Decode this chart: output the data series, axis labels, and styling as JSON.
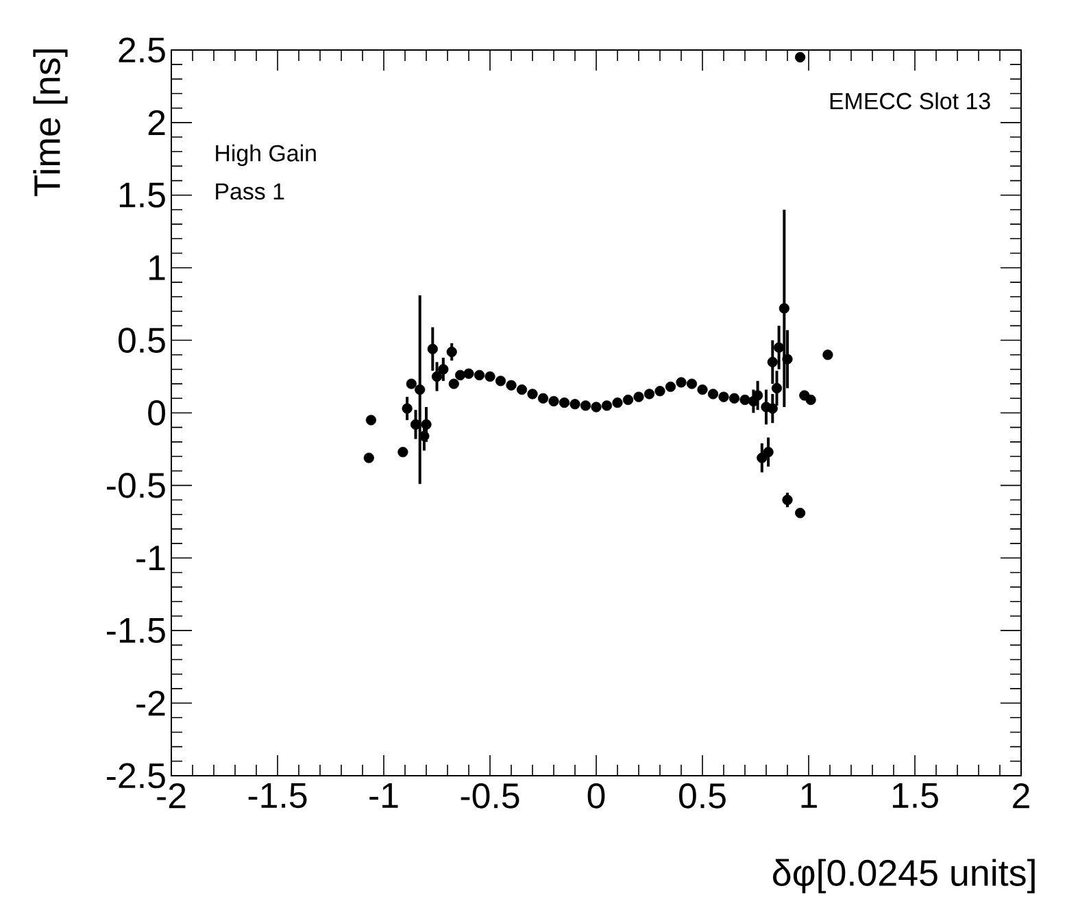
{
  "chart_data": {
    "type": "scatter",
    "xlabel": "δφ[0.0245 units]",
    "ylabel": "Time [ns]",
    "annotations": [
      "EMECC Slot 13",
      "High Gain",
      "Pass 1"
    ],
    "xlim": [
      -2,
      2
    ],
    "ylim": [
      -2.5,
      2.5
    ],
    "xticks": [
      -2,
      -1.5,
      -1,
      -0.5,
      0,
      0.5,
      1,
      1.5,
      2
    ],
    "yticks": [
      -2.5,
      -2,
      -1.5,
      -1,
      -0.5,
      0,
      0.5,
      1,
      1.5,
      2,
      2.5
    ],
    "marker": "circle",
    "color": "#000000",
    "x": [
      -1.07,
      -1.06,
      -0.91,
      -0.89,
      -0.87,
      -0.85,
      -0.83,
      -0.81,
      -0.8,
      -0.77,
      -0.75,
      -0.72,
      -0.68,
      -0.67,
      -0.64,
      -0.6,
      -0.55,
      -0.5,
      -0.45,
      -0.4,
      -0.35,
      -0.3,
      -0.25,
      -0.2,
      -0.15,
      -0.1,
      -0.05,
      0,
      0.05,
      0.1,
      0.15,
      0.2,
      0.25,
      0.3,
      0.35,
      0.4,
      0.45,
      0.5,
      0.55,
      0.6,
      0.65,
      0.7,
      0.74,
      0.76,
      0.78,
      0.8,
      0.81,
      0.83,
      0.83,
      0.85,
      0.86,
      0.885,
      0.9,
      0.9,
      0.96,
      0.96,
      0.98,
      1.01,
      1.09
    ],
    "values": [
      -0.31,
      -0.05,
      -0.27,
      0.03,
      0.2,
      -0.08,
      0.16,
      -0.16,
      -0.08,
      0.44,
      0.25,
      0.3,
      0.42,
      0.2,
      0.26,
      0.27,
      0.26,
      0.25,
      0.22,
      0.19,
      0.16,
      0.13,
      0.1,
      0.08,
      0.07,
      0.06,
      0.05,
      0.04,
      0.05,
      0.07,
      0.09,
      0.11,
      0.13,
      0.15,
      0.18,
      0.21,
      0.2,
      0.16,
      0.13,
      0.11,
      0.1,
      0.09,
      0.08,
      0.12,
      -0.31,
      0.04,
      -0.27,
      0.03,
      0.35,
      0.17,
      0.45,
      0.72,
      0.37,
      -0.6,
      -0.69,
      2.45,
      0.12,
      0.09,
      0.4
    ],
    "errors": [
      null,
      null,
      null,
      0.08,
      null,
      0.1,
      0.65,
      0.1,
      0.12,
      0.15,
      0.1,
      0.08,
      0.06,
      null,
      null,
      null,
      null,
      null,
      null,
      null,
      null,
      null,
      null,
      null,
      null,
      null,
      null,
      null,
      null,
      null,
      null,
      null,
      null,
      null,
      null,
      null,
      null,
      null,
      null,
      null,
      null,
      null,
      0.08,
      0.1,
      0.1,
      0.12,
      0.1,
      0.1,
      0.15,
      0.12,
      0.15,
      0.68,
      0.2,
      0.05,
      null,
      null,
      null,
      null,
      null
    ]
  }
}
